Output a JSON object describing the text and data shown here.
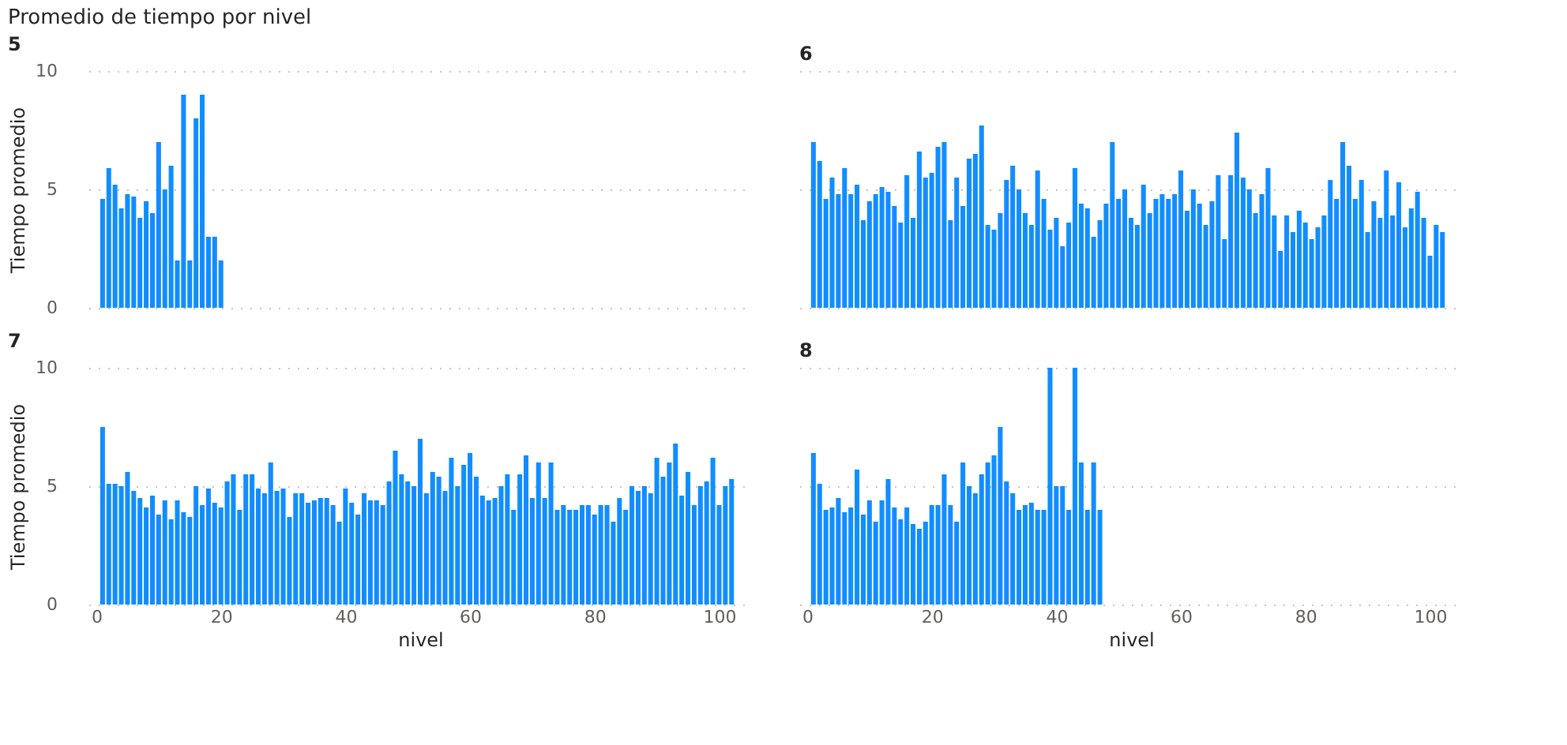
{
  "chart_data": [
    {
      "type": "bar",
      "title": "5",
      "annotations": [
        "Promedio de tiempo por nivel"
      ],
      "ylabel": "Tiempo promedio",
      "tick_labels": "y",
      "grid": "y",
      "xlim": [
        0,
        104
      ],
      "xticks": [
        0,
        20,
        40,
        60,
        80,
        100
      ],
      "ylim": [
        0,
        10
      ],
      "yticks": [
        0,
        5,
        10
      ],
      "x": [
        1,
        2,
        3,
        4,
        5,
        6,
        7,
        8,
        9,
        10,
        11,
        12,
        13,
        14,
        15,
        16,
        17,
        18,
        19,
        20
      ],
      "series": [
        {
          "color": "#118dff",
          "values": [
            4.6,
            5.9,
            5.2,
            4.2,
            4.8,
            4.7,
            3.8,
            4.5,
            4.0,
            7.0,
            5.0,
            6.0,
            2.0,
            9.0,
            2.0,
            8.0,
            9.0,
            3.0,
            3.0,
            2.0
          ]
        }
      ]
    },
    {
      "type": "bar",
      "title": "6",
      "tick_labels": false,
      "grid": "y",
      "xlim": [
        0,
        104
      ],
      "xticks": [
        0,
        20,
        40,
        60,
        80,
        100
      ],
      "ylim": [
        0,
        10
      ],
      "yticks": [
        0,
        5,
        10
      ],
      "x": [
        1,
        2,
        3,
        4,
        5,
        6,
        7,
        8,
        9,
        10,
        11,
        12,
        13,
        14,
        15,
        16,
        17,
        18,
        19,
        20,
        21,
        22,
        23,
        24,
        25,
        26,
        27,
        28,
        29,
        30,
        31,
        32,
        33,
        34,
        35,
        36,
        37,
        38,
        39,
        40,
        41,
        42,
        43,
        44,
        45,
        46,
        47,
        48,
        49,
        50,
        51,
        52,
        53,
        54,
        55,
        56,
        57,
        58,
        59,
        60,
        61,
        62,
        63,
        64,
        65,
        66,
        67,
        68,
        69,
        70,
        71,
        72,
        73,
        74,
        75,
        76,
        77,
        78,
        79,
        80,
        81,
        82,
        83,
        84,
        85,
        86,
        87,
        88,
        89,
        90,
        91,
        92,
        93,
        94,
        95,
        96,
        97,
        98,
        99,
        100,
        101,
        102
      ],
      "series": [
        {
          "color": "#118dff",
          "values": [
            7.0,
            6.2,
            4.6,
            5.5,
            4.8,
            5.9,
            4.8,
            5.2,
            3.7,
            4.5,
            4.8,
            5.1,
            4.9,
            4.3,
            3.6,
            5.6,
            3.8,
            6.6,
            5.5,
            5.7,
            6.8,
            7.0,
            3.7,
            5.5,
            4.3,
            6.3,
            6.5,
            7.7,
            3.5,
            3.3,
            4.0,
            5.4,
            6.0,
            5.0,
            4.0,
            3.5,
            5.8,
            4.6,
            3.3,
            3.8,
            2.6,
            3.6,
            5.9,
            4.4,
            4.2,
            3.0,
            3.7,
            4.4,
            7.0,
            4.6,
            5.0,
            3.8,
            3.5,
            5.2,
            4.0,
            4.6,
            4.8,
            4.6,
            4.8,
            5.8,
            4.1,
            5.0,
            4.4,
            3.5,
            4.5,
            5.6,
            2.9,
            5.6,
            7.4,
            5.5,
            5.0,
            4.0,
            4.8,
            5.9,
            3.9,
            2.4,
            3.9,
            3.2,
            4.1,
            3.6,
            2.9,
            3.4,
            3.9,
            5.4,
            4.6,
            7.0,
            6.0,
            4.6,
            5.4,
            3.2,
            4.5,
            3.8,
            5.8,
            3.9,
            5.3,
            3.4,
            4.2,
            4.9,
            3.8,
            2.2,
            3.5,
            3.2
          ]
        }
      ]
    },
    {
      "type": "bar",
      "title": "7",
      "xlabel": "nivel",
      "ylabel": "Tiempo promedio",
      "grid": "y",
      "xlim": [
        0,
        104
      ],
      "xticks": [
        0,
        20,
        40,
        60,
        80,
        100
      ],
      "ylim": [
        0,
        10
      ],
      "yticks": [
        0,
        5,
        10
      ],
      "x": [
        1,
        2,
        3,
        4,
        5,
        6,
        7,
        8,
        9,
        10,
        11,
        12,
        13,
        14,
        15,
        16,
        17,
        18,
        19,
        20,
        21,
        22,
        23,
        24,
        25,
        26,
        27,
        28,
        29,
        30,
        31,
        32,
        33,
        34,
        35,
        36,
        37,
        38,
        39,
        40,
        41,
        42,
        43,
        44,
        45,
        46,
        47,
        48,
        49,
        50,
        51,
        52,
        53,
        54,
        55,
        56,
        57,
        58,
        59,
        60,
        61,
        62,
        63,
        64,
        65,
        66,
        67,
        68,
        69,
        70,
        71,
        72,
        73,
        74,
        75,
        76,
        77,
        78,
        79,
        80,
        81,
        82,
        83,
        84,
        85,
        86,
        87,
        88,
        89,
        90,
        91,
        92,
        93,
        94,
        95,
        96,
        97,
        98,
        99,
        100,
        101,
        102
      ],
      "series": [
        {
          "color": "#118dff",
          "values": [
            7.5,
            5.1,
            5.1,
            5.0,
            5.6,
            4.8,
            4.5,
            4.1,
            4.6,
            3.8,
            4.4,
            3.6,
            4.4,
            3.9,
            3.7,
            5.0,
            4.2,
            4.9,
            4.3,
            4.1,
            5.2,
            5.5,
            4.0,
            5.5,
            5.5,
            4.9,
            4.7,
            6.0,
            4.8,
            4.9,
            3.7,
            4.7,
            4.7,
            4.3,
            4.4,
            4.5,
            4.5,
            4.2,
            3.5,
            4.9,
            4.3,
            3.8,
            4.7,
            4.4,
            4.4,
            4.2,
            5.2,
            6.5,
            5.5,
            5.2,
            5.0,
            7.0,
            4.7,
            5.6,
            5.4,
            4.8,
            6.2,
            5.0,
            5.9,
            6.4,
            5.4,
            4.6,
            4.4,
            4.5,
            5.0,
            5.5,
            4.0,
            5.5,
            6.3,
            4.5,
            6.0,
            4.5,
            6.0,
            4.0,
            4.2,
            4.0,
            4.0,
            4.2,
            4.2,
            3.8,
            4.2,
            4.2,
            3.5,
            4.5,
            4.0,
            5.0,
            4.8,
            5.0,
            4.7,
            6.2,
            5.4,
            6.0,
            6.8,
            4.6,
            5.6,
            4.2,
            5.0,
            5.2,
            6.2,
            4.2,
            5.0,
            5.3
          ]
        }
      ]
    },
    {
      "type": "bar",
      "title": "8",
      "xlabel": "nivel",
      "tick_labels": "x",
      "grid": "y",
      "xlim": [
        0,
        104
      ],
      "xticks": [
        0,
        20,
        40,
        60,
        80,
        100
      ],
      "ylim": [
        0,
        10
      ],
      "yticks": [
        0,
        5,
        10
      ],
      "x": [
        1,
        2,
        3,
        4,
        5,
        6,
        7,
        8,
        9,
        10,
        11,
        12,
        13,
        14,
        15,
        16,
        17,
        18,
        19,
        20,
        21,
        22,
        23,
        24,
        25,
        26,
        27,
        28,
        29,
        30,
        31,
        32,
        33,
        34,
        35,
        36,
        37,
        38,
        39,
        40,
        41,
        42,
        43,
        44,
        45,
        46,
        47
      ],
      "series": [
        {
          "color": "#118dff",
          "values": [
            6.4,
            5.1,
            4.0,
            4.1,
            4.5,
            3.9,
            4.1,
            5.7,
            3.8,
            4.4,
            3.5,
            4.4,
            5.3,
            4.1,
            3.6,
            4.1,
            3.4,
            3.2,
            3.5,
            4.2,
            4.2,
            5.5,
            4.2,
            3.5,
            6.0,
            5.0,
            4.7,
            5.5,
            6.0,
            6.3,
            7.5,
            5.2,
            4.7,
            4.0,
            4.2,
            4.3,
            4.0,
            4.0,
            10,
            5,
            5,
            4,
            10,
            6,
            4,
            6,
            4
          ]
        }
      ]
    }
  ]
}
